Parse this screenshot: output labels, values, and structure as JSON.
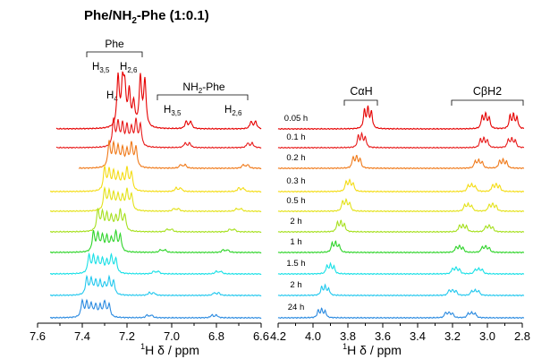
{
  "chart_data": [
    {
      "type": "line",
      "title": "Phe/NH2-Phe (1:0.1)",
      "title_main": "Phe/NH",
      "title_sub": "2",
      "title_rest": "-Phe (1:0.1)",
      "xlabel_super": "1",
      "xlabel": "H δ / ppm",
      "xlim": [
        7.6,
        6.6
      ],
      "xaxis_reversed": true,
      "xticks": [
        "7.6",
        "7.4",
        "7.2",
        "7.0",
        "6.8",
        "6.6"
      ],
      "xtick_values": [
        7.6,
        7.4,
        7.2,
        7.0,
        6.8,
        6.6
      ],
      "annotations": {
        "phe_group": "Phe",
        "h35": "H",
        "h35_sub": "3,5",
        "h4": "H",
        "h4_sub": "4",
        "h26": "H",
        "h26_sub": "2,6",
        "nh2phe_group": "NH2-Phe",
        "nh2phe_main": "NH",
        "nh2phe_sub": "2",
        "nh2phe_rest": "-Phe",
        "nh_h35": "H",
        "nh_h35_sub": "3,5",
        "nh_h26": "H",
        "nh_h26_sub": "2,6"
      },
      "series": [
        {
          "name": "0.05 h",
          "color": "#e60000",
          "phe_peaks": [
            {
              "x": 7.24,
              "h": 56
            },
            {
              "x": 7.22,
              "h": 44
            },
            {
              "x": 7.21,
              "h": 40
            },
            {
              "x": 7.19,
              "h": 38
            },
            {
              "x": 7.17,
              "h": 26
            },
            {
              "x": 7.14,
              "h": 55
            },
            {
              "x": 7.12,
              "h": 52
            }
          ],
          "nh2_peaks": [
            {
              "x": 6.935,
              "h": 8
            },
            {
              "x": 6.915,
              "h": 8
            },
            {
              "x": 6.645,
              "h": 8
            },
            {
              "x": 6.625,
              "h": 8
            }
          ]
        },
        {
          "name": "0.1 h",
          "color": "#e81a1a",
          "phe_peaks": [
            {
              "x": 7.26,
              "h": 30
            },
            {
              "x": 7.24,
              "h": 26
            },
            {
              "x": 7.22,
              "h": 24
            },
            {
              "x": 7.2,
              "h": 22
            },
            {
              "x": 7.18,
              "h": 20
            },
            {
              "x": 7.16,
              "h": 28
            },
            {
              "x": 7.14,
              "h": 24
            }
          ],
          "nh2_peaks": [
            {
              "x": 6.94,
              "h": 5
            },
            {
              "x": 6.92,
              "h": 5
            },
            {
              "x": 6.66,
              "h": 5
            },
            {
              "x": 6.64,
              "h": 5
            }
          ]
        },
        {
          "name": "0.2 h",
          "color": "#f07a1a",
          "phe_peaks": [
            {
              "x": 7.28,
              "h": 28
            },
            {
              "x": 7.26,
              "h": 24
            },
            {
              "x": 7.24,
              "h": 22
            },
            {
              "x": 7.22,
              "h": 20
            },
            {
              "x": 7.2,
              "h": 18
            },
            {
              "x": 7.18,
              "h": 26
            },
            {
              "x": 7.16,
              "h": 22
            }
          ],
          "nh2_peaks": [
            {
              "x": 6.96,
              "h": 4
            },
            {
              "x": 6.94,
              "h": 4
            },
            {
              "x": 6.68,
              "h": 4
            },
            {
              "x": 6.66,
              "h": 4
            }
          ]
        },
        {
          "name": "0.3 h",
          "color": "#f4dc14",
          "phe_peaks": [
            {
              "x": 7.3,
              "h": 26
            },
            {
              "x": 7.28,
              "h": 22
            },
            {
              "x": 7.26,
              "h": 20
            },
            {
              "x": 7.24,
              "h": 18
            },
            {
              "x": 7.22,
              "h": 16
            },
            {
              "x": 7.2,
              "h": 24
            },
            {
              "x": 7.18,
              "h": 20
            }
          ],
          "nh2_peaks": [
            {
              "x": 6.98,
              "h": 4
            },
            {
              "x": 6.96,
              "h": 4
            },
            {
              "x": 6.7,
              "h": 4
            },
            {
              "x": 6.68,
              "h": 4
            }
          ]
        },
        {
          "name": "0.5 h",
          "color": "#e4e21a",
          "phe_peaks": [
            {
              "x": 7.3,
              "h": 24
            },
            {
              "x": 7.28,
              "h": 20
            },
            {
              "x": 7.26,
              "h": 18
            },
            {
              "x": 7.24,
              "h": 17
            },
            {
              "x": 7.22,
              "h": 15
            },
            {
              "x": 7.2,
              "h": 22
            },
            {
              "x": 7.18,
              "h": 18
            }
          ],
          "nh2_peaks": [
            {
              "x": 6.99,
              "h": 3
            },
            {
              "x": 6.97,
              "h": 3
            },
            {
              "x": 6.71,
              "h": 3
            },
            {
              "x": 6.69,
              "h": 3
            }
          ]
        },
        {
          "name": "2 h",
          "color": "#a6e01e",
          "phe_peaks": [
            {
              "x": 7.33,
              "h": 24
            },
            {
              "x": 7.31,
              "h": 20
            },
            {
              "x": 7.29,
              "h": 18
            },
            {
              "x": 7.27,
              "h": 16
            },
            {
              "x": 7.25,
              "h": 15
            },
            {
              "x": 7.23,
              "h": 22
            },
            {
              "x": 7.21,
              "h": 18
            }
          ],
          "nh2_peaks": [
            {
              "x": 7.02,
              "h": 3
            },
            {
              "x": 7.0,
              "h": 3
            },
            {
              "x": 6.74,
              "h": 3
            },
            {
              "x": 6.72,
              "h": 3
            }
          ]
        },
        {
          "name": "1 h",
          "color": "#2fd42a",
          "phe_peaks": [
            {
              "x": 7.35,
              "h": 22
            },
            {
              "x": 7.33,
              "h": 19
            },
            {
              "x": 7.31,
              "h": 17
            },
            {
              "x": 7.29,
              "h": 16
            },
            {
              "x": 7.27,
              "h": 14
            },
            {
              "x": 7.25,
              "h": 21
            },
            {
              "x": 7.23,
              "h": 18
            }
          ],
          "nh2_peaks": [
            {
              "x": 7.05,
              "h": 3
            },
            {
              "x": 7.03,
              "h": 3
            },
            {
              "x": 6.77,
              "h": 3
            },
            {
              "x": 6.75,
              "h": 3
            }
          ]
        },
        {
          "name": "1.5 h",
          "color": "#18e0e6",
          "phe_peaks": [
            {
              "x": 7.37,
              "h": 20
            },
            {
              "x": 7.35,
              "h": 18
            },
            {
              "x": 7.33,
              "h": 16
            },
            {
              "x": 7.31,
              "h": 15
            },
            {
              "x": 7.29,
              "h": 13
            },
            {
              "x": 7.27,
              "h": 19
            },
            {
              "x": 7.25,
              "h": 16
            }
          ],
          "nh2_peaks": [
            {
              "x": 7.08,
              "h": 3
            },
            {
              "x": 7.06,
              "h": 3
            },
            {
              "x": 6.8,
              "h": 3
            },
            {
              "x": 6.78,
              "h": 3
            }
          ]
        },
        {
          "name": "2 h",
          "color": "#22c8ee",
          "phe_peaks": [
            {
              "x": 7.38,
              "h": 19
            },
            {
              "x": 7.36,
              "h": 17
            },
            {
              "x": 7.34,
              "h": 15
            },
            {
              "x": 7.32,
              "h": 14
            },
            {
              "x": 7.3,
              "h": 12
            },
            {
              "x": 7.28,
              "h": 18
            },
            {
              "x": 7.26,
              "h": 15
            }
          ],
          "nh2_peaks": [
            {
              "x": 7.1,
              "h": 3
            },
            {
              "x": 7.08,
              "h": 3
            },
            {
              "x": 6.81,
              "h": 3
            },
            {
              "x": 6.79,
              "h": 3
            }
          ]
        },
        {
          "name": "24 h",
          "color": "#2a8ae0",
          "phe_peaks": [
            {
              "x": 7.4,
              "h": 18
            },
            {
              "x": 7.38,
              "h": 16
            },
            {
              "x": 7.36,
              "h": 14
            },
            {
              "x": 7.34,
              "h": 13
            },
            {
              "x": 7.32,
              "h": 12
            },
            {
              "x": 7.3,
              "h": 17
            },
            {
              "x": 7.28,
              "h": 14
            }
          ],
          "nh2_peaks": [
            {
              "x": 7.11,
              "h": 3
            },
            {
              "x": 7.09,
              "h": 3
            },
            {
              "x": 6.82,
              "h": 3
            },
            {
              "x": 6.8,
              "h": 3
            }
          ]
        }
      ]
    },
    {
      "type": "line",
      "xlabel_super": "1",
      "xlabel": "H δ / ppm",
      "xlim": [
        4.2,
        2.8
      ],
      "xaxis_reversed": true,
      "xticks": [
        "4.2",
        "4.0",
        "3.8",
        "3.6",
        "3.4",
        "3.2",
        "3.0",
        "2.8"
      ],
      "xtick_values": [
        4.2,
        4.0,
        3.8,
        3.6,
        3.4,
        3.2,
        3.0,
        2.8
      ],
      "annotations": {
        "calpha_c": "C",
        "calpha_greek": "α",
        "calpha_h": "H",
        "cbeta_c": "C",
        "cbeta_greek": "β",
        "cbeta_h": "H2"
      },
      "series": [
        {
          "name": "0.05 h",
          "color": "#e60000",
          "alpha_peaks": [
            {
              "x": 3.705,
              "h": 20
            },
            {
              "x": 3.685,
              "h": 22
            },
            {
              "x": 3.665,
              "h": 18
            }
          ],
          "beta_peaks": [
            {
              "x": 3.03,
              "h": 14
            },
            {
              "x": 3.01,
              "h": 16
            },
            {
              "x": 2.99,
              "h": 12
            },
            {
              "x": 2.87,
              "h": 14
            },
            {
              "x": 2.85,
              "h": 15
            },
            {
              "x": 2.83,
              "h": 12
            }
          ]
        },
        {
          "name": "0.1 h",
          "color": "#e81a1a",
          "alpha_peaks": [
            {
              "x": 3.74,
              "h": 13
            },
            {
              "x": 3.72,
              "h": 14
            },
            {
              "x": 3.7,
              "h": 11
            }
          ],
          "beta_peaks": [
            {
              "x": 3.04,
              "h": 9
            },
            {
              "x": 3.02,
              "h": 10
            },
            {
              "x": 3.0,
              "h": 8
            },
            {
              "x": 2.88,
              "h": 9
            },
            {
              "x": 2.86,
              "h": 10
            },
            {
              "x": 2.84,
              "h": 8
            }
          ]
        },
        {
          "name": "0.2 h",
          "color": "#f07a1a",
          "alpha_peaks": [
            {
              "x": 3.77,
              "h": 12
            },
            {
              "x": 3.75,
              "h": 13
            },
            {
              "x": 3.73,
              "h": 10
            }
          ],
          "beta_peaks": [
            {
              "x": 3.07,
              "h": 8
            },
            {
              "x": 3.05,
              "h": 9
            },
            {
              "x": 3.03,
              "h": 7
            },
            {
              "x": 2.93,
              "h": 8
            },
            {
              "x": 2.91,
              "h": 9
            },
            {
              "x": 2.89,
              "h": 7
            }
          ]
        },
        {
          "name": "0.3 h",
          "color": "#f4dc14",
          "alpha_peaks": [
            {
              "x": 3.81,
              "h": 11
            },
            {
              "x": 3.79,
              "h": 12
            },
            {
              "x": 3.77,
              "h": 9
            }
          ],
          "beta_peaks": [
            {
              "x": 3.11,
              "h": 7
            },
            {
              "x": 3.09,
              "h": 8
            },
            {
              "x": 3.07,
              "h": 6
            },
            {
              "x": 2.97,
              "h": 7
            },
            {
              "x": 2.95,
              "h": 8
            },
            {
              "x": 2.93,
              "h": 6
            }
          ]
        },
        {
          "name": "0.5 h",
          "color": "#e4e21a",
          "alpha_peaks": [
            {
              "x": 3.83,
              "h": 11
            },
            {
              "x": 3.81,
              "h": 12
            },
            {
              "x": 3.79,
              "h": 9
            }
          ],
          "beta_peaks": [
            {
              "x": 3.13,
              "h": 7
            },
            {
              "x": 3.11,
              "h": 8
            },
            {
              "x": 3.09,
              "h": 6
            },
            {
              "x": 2.99,
              "h": 7
            },
            {
              "x": 2.97,
              "h": 8
            },
            {
              "x": 2.95,
              "h": 6
            }
          ]
        },
        {
          "name": "2 h",
          "color": "#a6e01e",
          "alpha_peaks": [
            {
              "x": 3.86,
              "h": 10
            },
            {
              "x": 3.84,
              "h": 11
            },
            {
              "x": 3.82,
              "h": 8
            }
          ],
          "beta_peaks": [
            {
              "x": 3.16,
              "h": 7
            },
            {
              "x": 3.14,
              "h": 7
            },
            {
              "x": 3.12,
              "h": 6
            },
            {
              "x": 3.01,
              "h": 6
            },
            {
              "x": 2.99,
              "h": 7
            },
            {
              "x": 2.97,
              "h": 5
            }
          ]
        },
        {
          "name": "1 h",
          "color": "#2fd42a",
          "alpha_peaks": [
            {
              "x": 3.89,
              "h": 10
            },
            {
              "x": 3.87,
              "h": 11
            },
            {
              "x": 3.85,
              "h": 8
            }
          ],
          "beta_peaks": [
            {
              "x": 3.18,
              "h": 6
            },
            {
              "x": 3.16,
              "h": 7
            },
            {
              "x": 3.14,
              "h": 5
            },
            {
              "x": 3.03,
              "h": 6
            },
            {
              "x": 3.01,
              "h": 7
            },
            {
              "x": 2.99,
              "h": 5
            }
          ]
        },
        {
          "name": "1.5 h",
          "color": "#18e0e6",
          "alpha_peaks": [
            {
              "x": 3.92,
              "h": 9
            },
            {
              "x": 3.9,
              "h": 10
            },
            {
              "x": 3.88,
              "h": 8
            }
          ],
          "beta_peaks": [
            {
              "x": 3.2,
              "h": 6
            },
            {
              "x": 3.18,
              "h": 7
            },
            {
              "x": 3.16,
              "h": 5
            },
            {
              "x": 3.07,
              "h": 5
            },
            {
              "x": 3.05,
              "h": 6
            },
            {
              "x": 3.03,
              "h": 5
            }
          ]
        },
        {
          "name": "2 h",
          "color": "#22c8ee",
          "alpha_peaks": [
            {
              "x": 3.95,
              "h": 9
            },
            {
              "x": 3.93,
              "h": 10
            },
            {
              "x": 3.91,
              "h": 7
            }
          ],
          "beta_peaks": [
            {
              "x": 3.22,
              "h": 6
            },
            {
              "x": 3.2,
              "h": 6
            },
            {
              "x": 3.18,
              "h": 5
            },
            {
              "x": 3.09,
              "h": 5
            },
            {
              "x": 3.07,
              "h": 6
            },
            {
              "x": 3.05,
              "h": 5
            }
          ]
        },
        {
          "name": "24 h",
          "color": "#2a8ae0",
          "alpha_peaks": [
            {
              "x": 3.97,
              "h": 8
            },
            {
              "x": 3.95,
              "h": 9
            },
            {
              "x": 3.93,
              "h": 7
            }
          ],
          "beta_peaks": [
            {
              "x": 3.24,
              "h": 6
            },
            {
              "x": 3.22,
              "h": 6
            },
            {
              "x": 3.2,
              "h": 5
            },
            {
              "x": 3.11,
              "h": 5
            },
            {
              "x": 3.09,
              "h": 6
            },
            {
              "x": 3.07,
              "h": 5
            }
          ]
        }
      ]
    }
  ]
}
